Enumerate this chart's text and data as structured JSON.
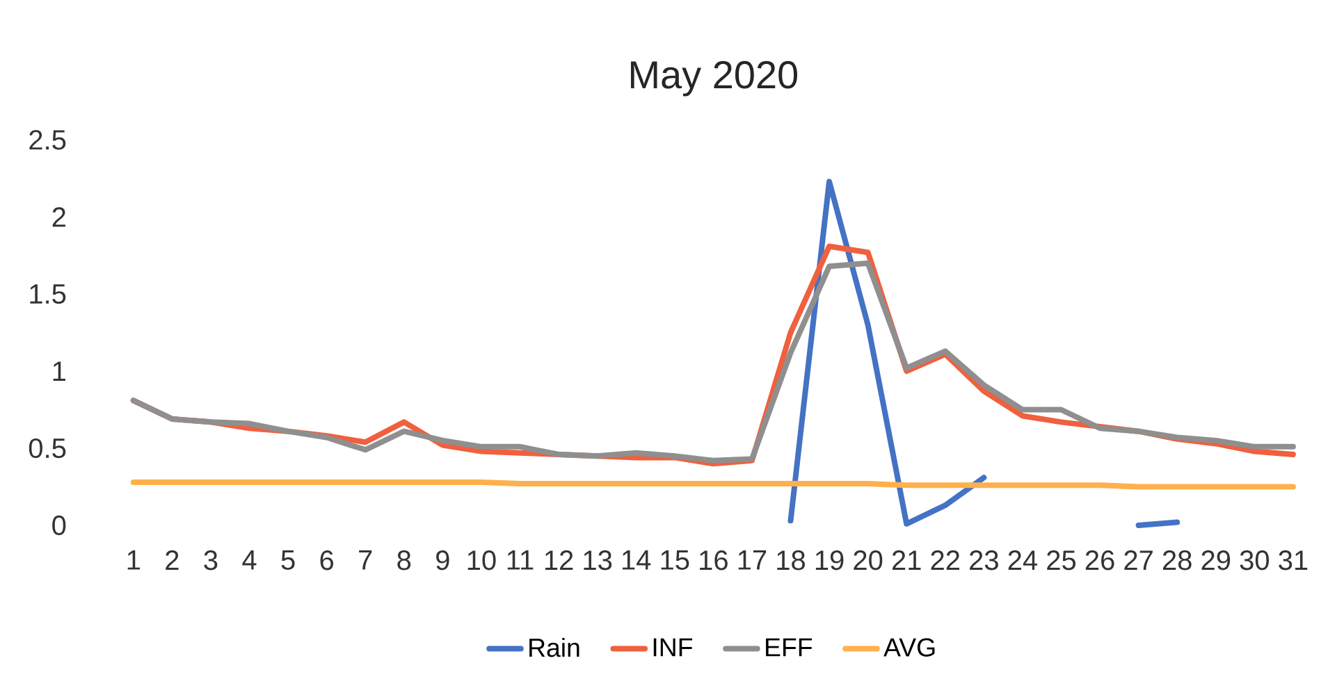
{
  "chart_data": {
    "type": "line",
    "title": "May 2020",
    "categories": [
      "1",
      "2",
      "3",
      "4",
      "5",
      "6",
      "7",
      "8",
      "9",
      "10",
      "11",
      "12",
      "13",
      "14",
      "15",
      "16",
      "17",
      "18",
      "19",
      "20",
      "21",
      "22",
      "23",
      "24",
      "25",
      "26",
      "27",
      "28",
      "29",
      "30",
      "31"
    ],
    "series": [
      {
        "name": "Rain",
        "color": "#4472c4",
        "values": [
          null,
          null,
          null,
          null,
          null,
          null,
          null,
          null,
          null,
          null,
          null,
          null,
          null,
          null,
          null,
          null,
          null,
          0.03,
          2.23,
          1.3,
          0.01,
          0.13,
          0.31,
          null,
          null,
          null,
          0,
          0.02,
          null,
          null,
          null
        ]
      },
      {
        "name": "INF",
        "color": "#f0603e",
        "values": [
          0.81,
          0.69,
          0.67,
          0.63,
          0.61,
          0.58,
          0.54,
          0.67,
          0.52,
          0.48,
          0.47,
          0.46,
          0.45,
          0.44,
          0.44,
          0.4,
          0.42,
          1.25,
          1.81,
          1.77,
          1.0,
          1.11,
          0.87,
          0.71,
          0.67,
          0.64,
          0.61,
          0.56,
          0.53,
          0.48,
          0.46
        ]
      },
      {
        "name": "EFF",
        "color": "#8f8f8f",
        "values": [
          0.81,
          0.69,
          0.67,
          0.66,
          0.61,
          0.57,
          0.49,
          0.61,
          0.55,
          0.51,
          0.51,
          0.46,
          0.45,
          0.47,
          0.45,
          0.42,
          0.43,
          1.12,
          1.68,
          1.7,
          1.02,
          1.13,
          0.91,
          0.75,
          0.75,
          0.63,
          0.61,
          0.57,
          0.55,
          0.51,
          0.51
        ]
      },
      {
        "name": "AVG",
        "color": "#ffb04c",
        "values": [
          0.28,
          0.28,
          0.28,
          0.28,
          0.28,
          0.28,
          0.28,
          0.28,
          0.28,
          0.28,
          0.27,
          0.27,
          0.27,
          0.27,
          0.27,
          0.27,
          0.27,
          0.27,
          0.27,
          0.27,
          0.26,
          0.26,
          0.26,
          0.26,
          0.26,
          0.26,
          0.25,
          0.25,
          0.25,
          0.25,
          0.25
        ]
      }
    ],
    "ylim": [
      0,
      2.5
    ],
    "yticks": [
      0,
      0.5,
      1,
      1.5,
      2,
      2.5
    ],
    "legend": "bottom",
    "grid": false,
    "marker": "none",
    "line_style": "solid"
  }
}
